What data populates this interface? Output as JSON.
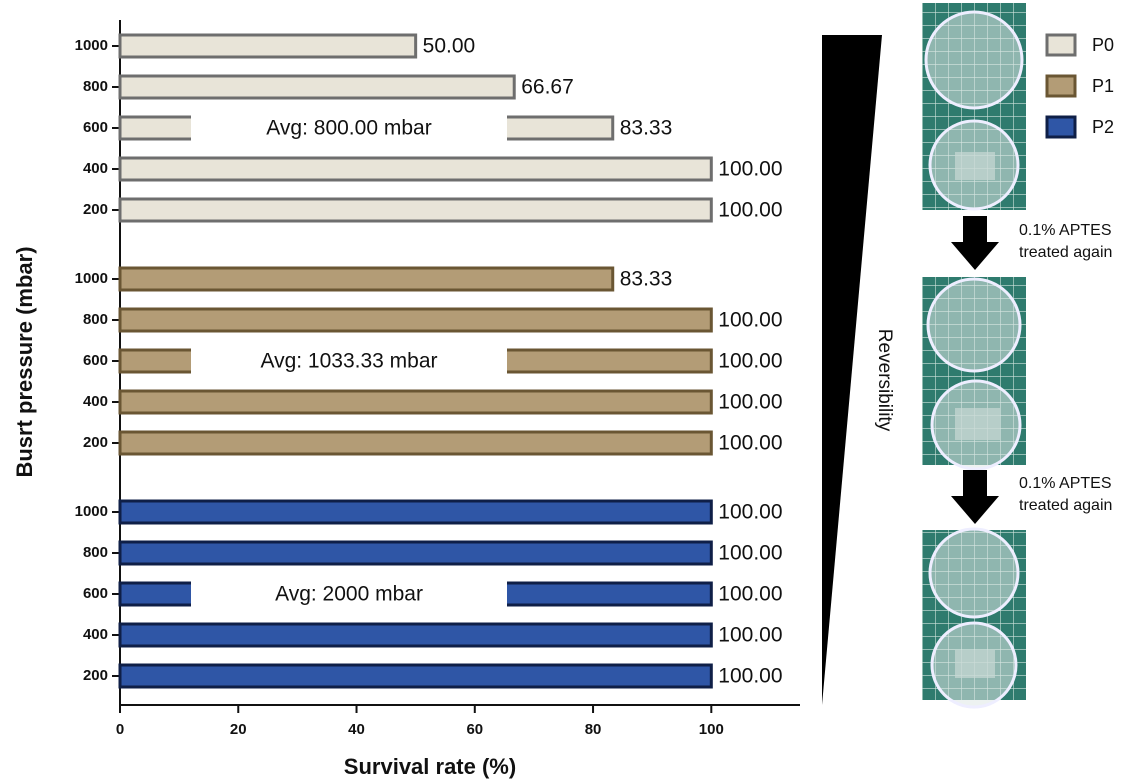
{
  "chart_data": {
    "type": "bar",
    "x_label": "Survival rate (%)",
    "y_label": "Busrt pressure (mbar)",
    "categories": [
      "1000",
      "800",
      "600",
      "400",
      "200"
    ],
    "series": [
      {
        "name": "P0",
        "color": "#e8e4d8",
        "edge": "#6e6e6e",
        "values": [
          50,
          66.67,
          83.33,
          100,
          100
        ],
        "value_labels": [
          "50.00",
          "66.67",
          "83.33",
          "100.00",
          "100.00"
        ],
        "annotation": "Avg: 800.00 mbar"
      },
      {
        "name": "P1",
        "color": "#b39c76",
        "edge": "#6a5633",
        "values": [
          83.33,
          100,
          100,
          100,
          100
        ],
        "value_labels": [
          "83.33",
          "100.00",
          "100.00",
          "100.00",
          "100.00"
        ],
        "annotation": "Avg: 1033.33 mbar"
      },
      {
        "name": "P2",
        "color": "#2f56a6",
        "edge": "#0f1f47",
        "values": [
          100,
          100,
          100,
          100,
          100
        ],
        "value_labels": [
          "100.00",
          "100.00",
          "100.00",
          "100.00",
          "100.00"
        ],
        "annotation": "Avg: 2000 mbar"
      }
    ],
    "xlim": [
      0,
      115
    ],
    "xticks": [
      0,
      20,
      40,
      60,
      80,
      100
    ],
    "side_label": "Reversibility",
    "notes": [
      [
        "0.1% APTES",
        "treated again"
      ],
      [
        "0.1% APTES",
        "treated again"
      ]
    ]
  }
}
